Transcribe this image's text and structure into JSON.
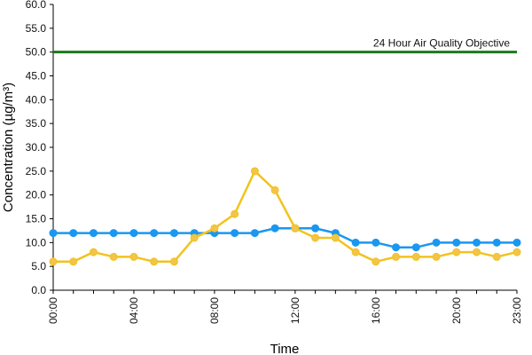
{
  "chart_data": {
    "type": "line",
    "xlabel": "Time",
    "ylabel": "Concentration (µg/m³)",
    "ylim": [
      0,
      60
    ],
    "y_ticks": [
      "0.0",
      "5.0",
      "10.0",
      "15.0",
      "20.0",
      "25.0",
      "30.0",
      "35.0",
      "40.0",
      "45.0",
      "50.0",
      "55.0",
      "60.0"
    ],
    "x_ticks": [
      {
        "hour": 0,
        "label": "00:00"
      },
      {
        "hour": 4,
        "label": "04:00"
      },
      {
        "hour": 8,
        "label": "08:00"
      },
      {
        "hour": 12,
        "label": "12:00"
      },
      {
        "hour": 16,
        "label": "16:00"
      },
      {
        "hour": 20,
        "label": "20:00"
      },
      {
        "hour": 23,
        "label": "23:00"
      }
    ],
    "x": [
      0,
      1,
      2,
      3,
      4,
      5,
      6,
      7,
      8,
      9,
      10,
      11,
      12,
      13,
      14,
      15,
      16,
      17,
      18,
      19,
      20,
      21,
      22,
      23
    ],
    "series": [
      {
        "color": "#1a97f0",
        "marker_color": "#1a97f0",
        "values": [
          12,
          12,
          12,
          12,
          12,
          12,
          12,
          12,
          12,
          12,
          12,
          13,
          13,
          13,
          12,
          10,
          10,
          9,
          9,
          10,
          10,
          10,
          10,
          10
        ]
      },
      {
        "color": "#f2c31d",
        "marker_color": "#f2c44a",
        "values": [
          6,
          6,
          8,
          7,
          7,
          6,
          6,
          11,
          13,
          16,
          25,
          21,
          13,
          11,
          11,
          8,
          6,
          7,
          7,
          7,
          8,
          8,
          7,
          8
        ]
      }
    ],
    "reference_line": {
      "value": 50,
      "color": "#1c7a1c",
      "label": "24 Hour Air Quality Objective"
    }
  }
}
